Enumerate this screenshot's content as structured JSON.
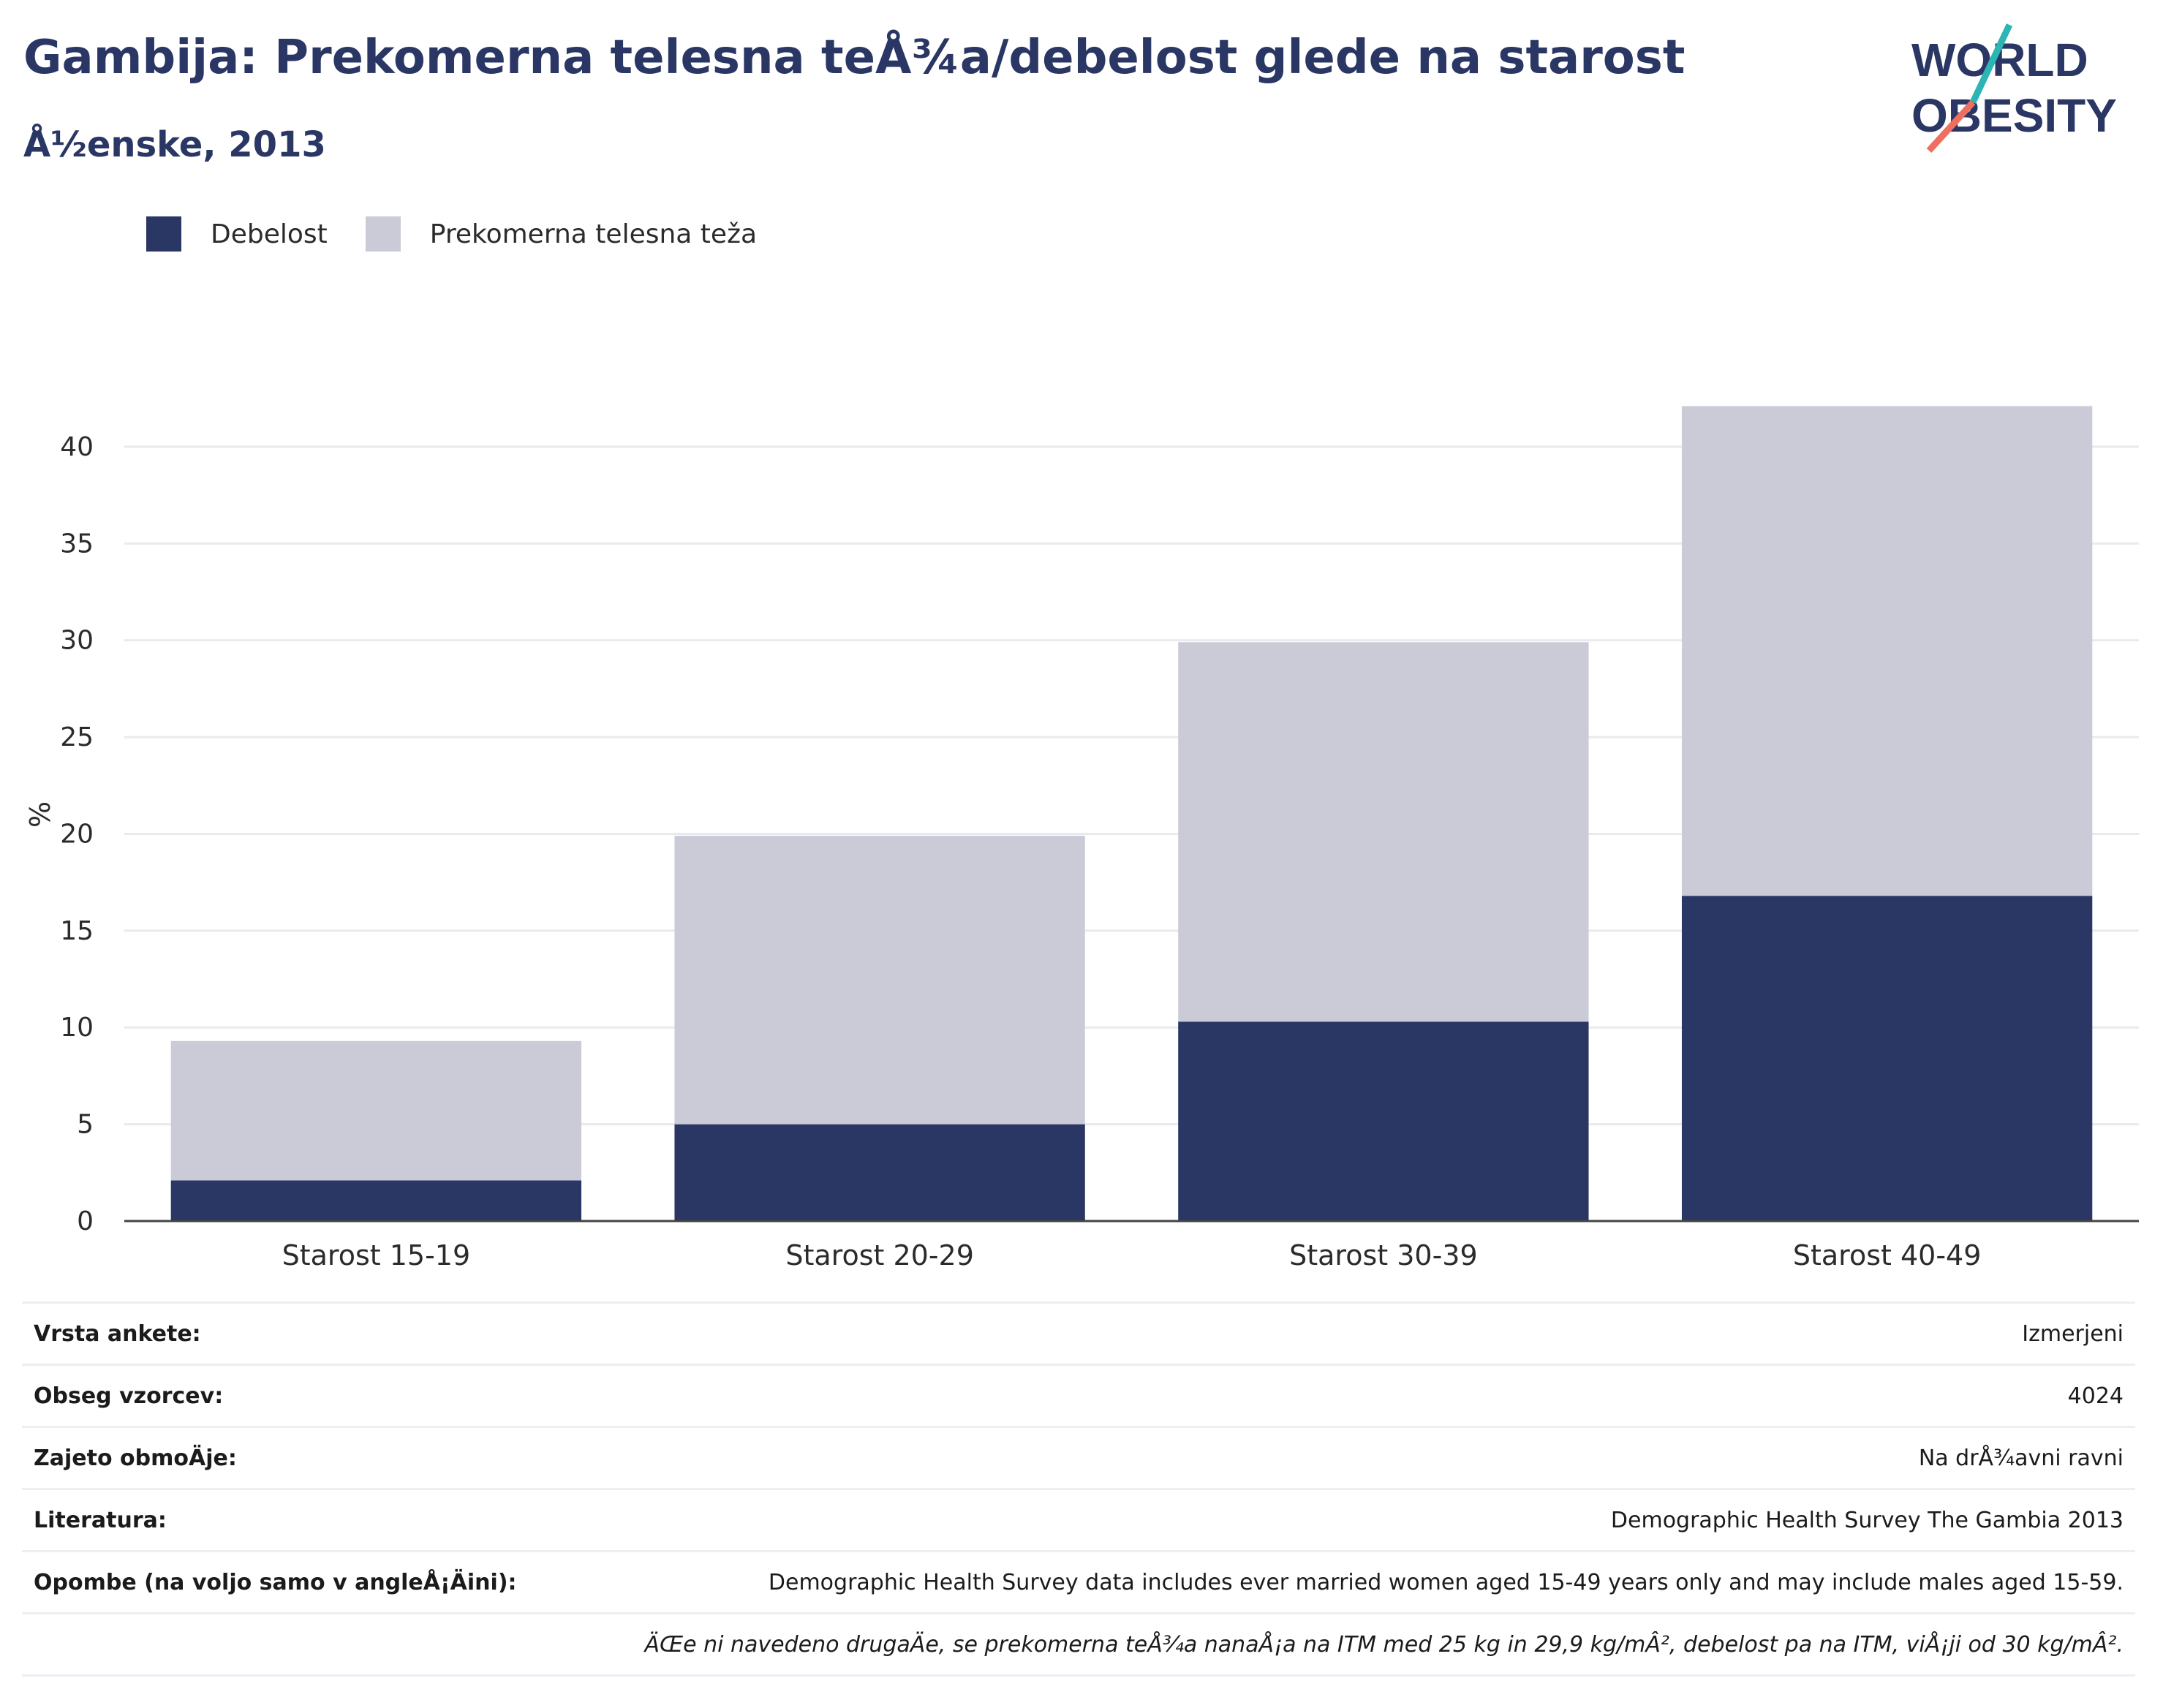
{
  "header": {
    "title": "Gambija: Prekomerna telesna teÅ¾a/debelost glede na starost",
    "subtitle": "Å½enske, 2013"
  },
  "logo": {
    "line1": "WORLD",
    "line2": "OBESITY",
    "accent_colors": [
      "#2bb5b5",
      "#ef6f5e"
    ],
    "text_color": "#2a3664"
  },
  "legend": {
    "items": [
      {
        "label": "Debelost",
        "color": "#2a3664"
      },
      {
        "label": "Prekomerna telesna teža",
        "color": "#cacbd6"
      }
    ]
  },
  "chart_data": {
    "type": "bar",
    "stacked": true,
    "ylabel": "%",
    "ylim": [
      0,
      42
    ],
    "yticks": [
      0,
      5,
      10,
      15,
      20,
      25,
      30,
      35,
      40
    ],
    "grid": true,
    "legend_position": "top-left",
    "categories": [
      "Starost 15-19",
      "Starost 20-29",
      "Starost 30-39",
      "Starost 40-49"
    ],
    "series": [
      {
        "name": "Debelost",
        "color": "#2a3664",
        "values": [
          2.1,
          5.0,
          10.3,
          16.8
        ]
      },
      {
        "name": "Prekomerna telesna teža",
        "color": "#cacbd6",
        "values": [
          7.2,
          14.9,
          19.6,
          25.3
        ]
      }
    ],
    "totals": [
      9.3,
      19.9,
      29.9,
      42.1
    ]
  },
  "info": {
    "rows": [
      {
        "key": "Vrsta ankete:",
        "value": "Izmerjeni"
      },
      {
        "key": "Obseg vzorcev:",
        "value": "4024"
      },
      {
        "key": "Zajeto obmoÄje:",
        "value": "Na drÅ¾avni ravni"
      },
      {
        "key": "Literatura:",
        "value": "Demographic Health Survey The Gambia 2013"
      },
      {
        "key": "Opombe (na voljo samo v angleÅ¡Äini):",
        "value": "Demographic Health Survey data includes ever married women aged 15-49 years only and may include males aged 15-59."
      }
    ],
    "footnote": "ÄŒe ni navedeno drugaÄe, se prekomerna teÅ¾a nanaÅ¡a na ITM med 25 kg in 29,9 kg/mÂ², debelost pa na ITM, viÅ¡ji od 30 kg/mÂ²."
  }
}
